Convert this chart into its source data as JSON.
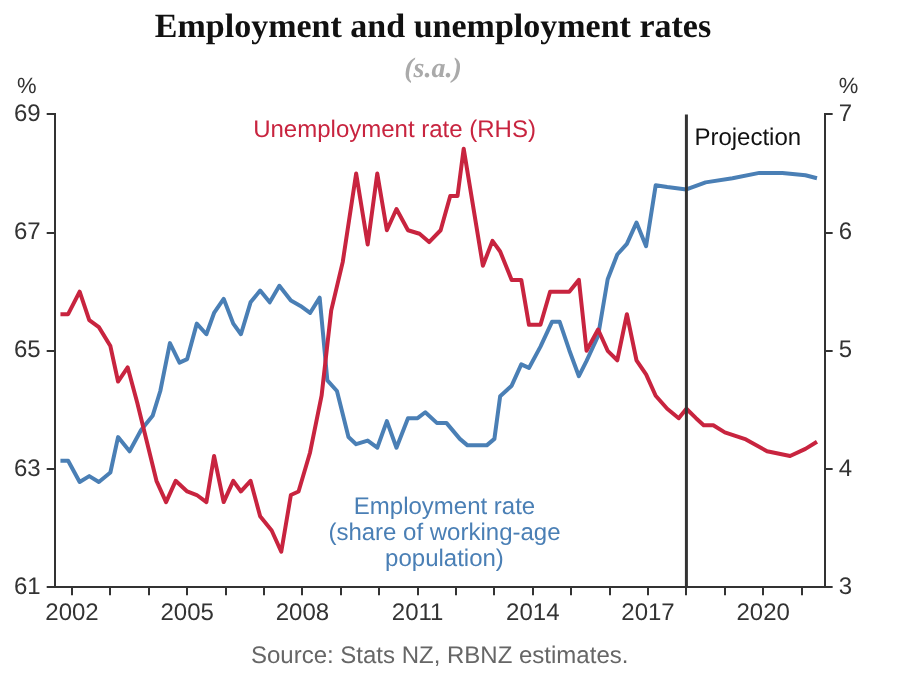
{
  "chart_data": {
    "type": "line",
    "title": "Employment and unemployment rates",
    "subtitle": "(s.a.)",
    "ylabel": "%",
    "y2label": "%",
    "xlim": [
      2001.55,
      2021.6
    ],
    "xticks": [
      2002,
      {
        "value": 2003,
        "label": null
      },
      {
        "value": 2004,
        "label": null
      },
      2005,
      {
        "value": 2006,
        "label": null
      },
      {
        "value": 2007,
        "label": null
      },
      2008,
      {
        "value": 2009,
        "label": null
      },
      {
        "value": 2010,
        "label": null
      },
      2011,
      {
        "value": 2012,
        "label": null
      },
      {
        "value": 2013,
        "label": null
      },
      2014,
      {
        "value": 2015,
        "label": null
      },
      {
        "value": 2016,
        "label": null
      },
      2017,
      {
        "value": 2018,
        "label": null
      },
      {
        "value": 2019,
        "label": null
      },
      2020,
      {
        "value": 2021,
        "label": null
      }
    ],
    "ylim": [
      61,
      69
    ],
    "yticks": [
      61,
      63,
      65,
      67,
      69
    ],
    "y2lim": [
      3,
      7
    ],
    "y2ticks": [
      3,
      4,
      5,
      6,
      7
    ],
    "series": [
      {
        "name": "Unemployment rate (RHS)",
        "color": "#c8243f",
        "axis": "y2",
        "x": [
          2001.7,
          2001.9,
          2002.2,
          2002.45,
          2002.7,
          2003.0,
          2003.2,
          2003.45,
          2003.7,
          2003.95,
          2004.2,
          2004.45,
          2004.7,
          2005.0,
          2005.25,
          2005.5,
          2005.7,
          2005.95,
          2006.2,
          2006.4,
          2006.65,
          2006.9,
          2007.2,
          2007.45,
          2007.7,
          2007.9,
          2008.2,
          2008.5,
          2008.75,
          2009.05,
          2009.4,
          2009.7,
          2009.95,
          2010.2,
          2010.45,
          2010.75,
          2011.05,
          2011.3,
          2011.6,
          2011.85,
          2012.04,
          2012.2,
          2012.7,
          2012.95,
          2013.15,
          2013.45,
          2013.7,
          2013.9,
          2014.2,
          2014.45,
          2014.95,
          2015.2,
          2015.4,
          2015.7,
          2015.95,
          2016.2,
          2016.45,
          2016.7,
          2016.95,
          2017.2,
          2017.5,
          2017.8,
          2018.0,
          2018.25,
          2018.45,
          2018.7,
          2019.0,
          2019.55,
          2020.1,
          2020.7,
          2021.1,
          2021.4
        ],
        "values": [
          5.31,
          5.31,
          5.5,
          5.26,
          5.2,
          5.04,
          4.74,
          4.86,
          4.56,
          4.23,
          3.9,
          3.72,
          3.9,
          3.81,
          3.78,
          3.72,
          4.11,
          3.72,
          3.9,
          3.81,
          3.9,
          3.6,
          3.48,
          3.3,
          3.78,
          3.81,
          4.14,
          4.62,
          5.34,
          5.75,
          6.5,
          5.9,
          6.5,
          6.02,
          6.2,
          6.02,
          5.99,
          5.92,
          6.02,
          6.31,
          6.31,
          6.71,
          5.72,
          5.93,
          5.84,
          5.6,
          5.6,
          5.22,
          5.22,
          5.5,
          5.5,
          5.6,
          5.0,
          5.18,
          5.0,
          4.92,
          5.31,
          4.92,
          4.8,
          4.62,
          4.51,
          4.43,
          4.51,
          4.43,
          4.37,
          4.37,
          4.31,
          4.25,
          4.15,
          4.11,
          4.17,
          4.23
        ]
      },
      {
        "name": "Employment rate (share of working-age population)",
        "color": "#4a7fb5",
        "x": [
          2001.7,
          2001.9,
          2002.2,
          2002.45,
          2002.7,
          2003.0,
          2003.2,
          2003.5,
          2003.8,
          2004.1,
          2004.3,
          2004.55,
          2004.8,
          2005.0,
          2005.25,
          2005.5,
          2005.7,
          2005.95,
          2006.2,
          2006.4,
          2006.65,
          2006.9,
          2007.15,
          2007.4,
          2007.7,
          2007.95,
          2008.2,
          2008.45,
          2008.65,
          2008.9,
          2009.2,
          2009.4,
          2009.7,
          2009.95,
          2010.2,
          2010.45,
          2010.75,
          2011.0,
          2011.2,
          2011.5,
          2011.75,
          2012.1,
          2012.3,
          2012.8,
          2013.0,
          2013.15,
          2013.45,
          2013.7,
          2013.9,
          2014.2,
          2014.5,
          2014.7,
          2014.95,
          2015.2,
          2015.4,
          2015.7,
          2015.95,
          2016.2,
          2016.45,
          2016.7,
          2016.95,
          2017.2,
          2017.5,
          2018.0,
          2018.5,
          2019.2,
          2019.9,
          2020.5,
          2021.1,
          2021.4
        ],
        "values": [
          63.14,
          63.14,
          62.78,
          62.88,
          62.78,
          62.94,
          63.54,
          63.3,
          63.66,
          63.9,
          64.32,
          65.13,
          64.8,
          64.86,
          65.46,
          65.28,
          65.64,
          65.88,
          65.46,
          65.28,
          65.82,
          66.02,
          65.82,
          66.1,
          65.85,
          65.76,
          65.64,
          65.9,
          64.5,
          64.32,
          63.54,
          63.42,
          63.48,
          63.36,
          63.81,
          63.36,
          63.86,
          63.86,
          63.96,
          63.78,
          63.78,
          63.51,
          63.4,
          63.4,
          63.51,
          64.23,
          64.41,
          64.77,
          64.71,
          65.07,
          65.49,
          65.49,
          65.01,
          64.57,
          64.83,
          65.25,
          66.21,
          66.63,
          66.81,
          67.17,
          66.77,
          67.8,
          67.77,
          67.73,
          67.85,
          67.92,
          68.01,
          68.01,
          67.97,
          67.92
        ]
      }
    ],
    "ref_lines": [
      {
        "axis": "x",
        "value": 2018,
        "label": "Projection",
        "color": "#333333"
      }
    ],
    "annotations": [
      "Source: Stats NZ, RBNZ estimates."
    ],
    "grid": false,
    "legend": false,
    "marker": "none",
    "line_style": "solid"
  }
}
